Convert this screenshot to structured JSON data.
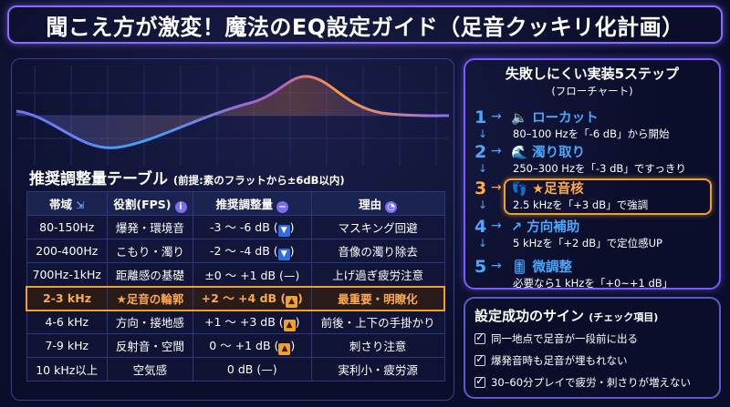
{
  "title": "聞こえ方が激変！魔法のEQ設定ガイド（足音クッキリ化計画）",
  "table": {
    "title": "推奨調整量テーブル",
    "subtitle": "(前提:素のフラットから±6dB以内)",
    "headers": [
      "帯域",
      "役割(FPS)",
      "推奨調整量",
      "理由"
    ],
    "rows": [
      {
        "band": "80-150Hz",
        "role": "爆発・環境音",
        "adj": "-3 〜 -6 dB",
        "mark": "down",
        "reason": "マスキング回避"
      },
      {
        "band": "200-400Hz",
        "role": "こもり・濁り",
        "adj": "-2 〜 -4 dB",
        "mark": "down",
        "reason": "音像の濁り除去"
      },
      {
        "band": "700Hz-1kHz",
        "role": "距離感の基礎",
        "adj": "±0 〜 +1 dB",
        "mark": "flat",
        "reason": "上げ過ぎ疲労注意"
      },
      {
        "band": "2-3 kHz",
        "role": "★足音の輪郭",
        "adj": "+2 〜 +4 dB",
        "mark": "up",
        "reason": "最重要・明瞭化"
      },
      {
        "band": "4-6 kHz",
        "role": "方向・接地感",
        "adj": "+1 〜 +3 dB",
        "mark": "up",
        "reason": "前後・上下の手掛かり"
      },
      {
        "band": "7-9 kHz",
        "role": "反射音・空間",
        "adj": "0 〜 +1 dB",
        "mark": "up",
        "reason": "刺さり注意"
      },
      {
        "band": "10 kHz以上",
        "role": "空気感",
        "adj": "0 dB",
        "mark": "flat",
        "reason": "実利小・疲労源"
      }
    ]
  },
  "steps": {
    "title": "失敗しにくい実装5ステップ",
    "subtitle": "(フローチャート)",
    "items": [
      {
        "num": "1",
        "head": "🔈 ローカット",
        "desc": "80–100 Hzを「-6 dB」から開始"
      },
      {
        "num": "2",
        "head": "🌊 濁り取り",
        "desc": "250–300 Hzを「-3 dB」ですっきり"
      },
      {
        "num": "3",
        "head": "👣 ★足音核",
        "desc": "2.5 kHzを「+3 dB」で強調"
      },
      {
        "num": "4",
        "head": "↗ 方向補助",
        "desc": "5 kHzを「+2 dB」で定位感UP"
      },
      {
        "num": "5",
        "head": "🎚 微調整",
        "desc": "必要なら1 kHzを「+0~+1 dB」"
      }
    ]
  },
  "signs": {
    "title": "設定成功のサイン",
    "subtitle": "(チェック項目)",
    "items": [
      "同一地点で足音が一段前に出る",
      "爆発音時も足音が埋もれない",
      "30–60分プレイで疲労・刺さりが増えない"
    ]
  },
  "colors": {
    "accent": "#8a6cff",
    "highlight": "#f0a030",
    "step": "#4aa8ff"
  }
}
